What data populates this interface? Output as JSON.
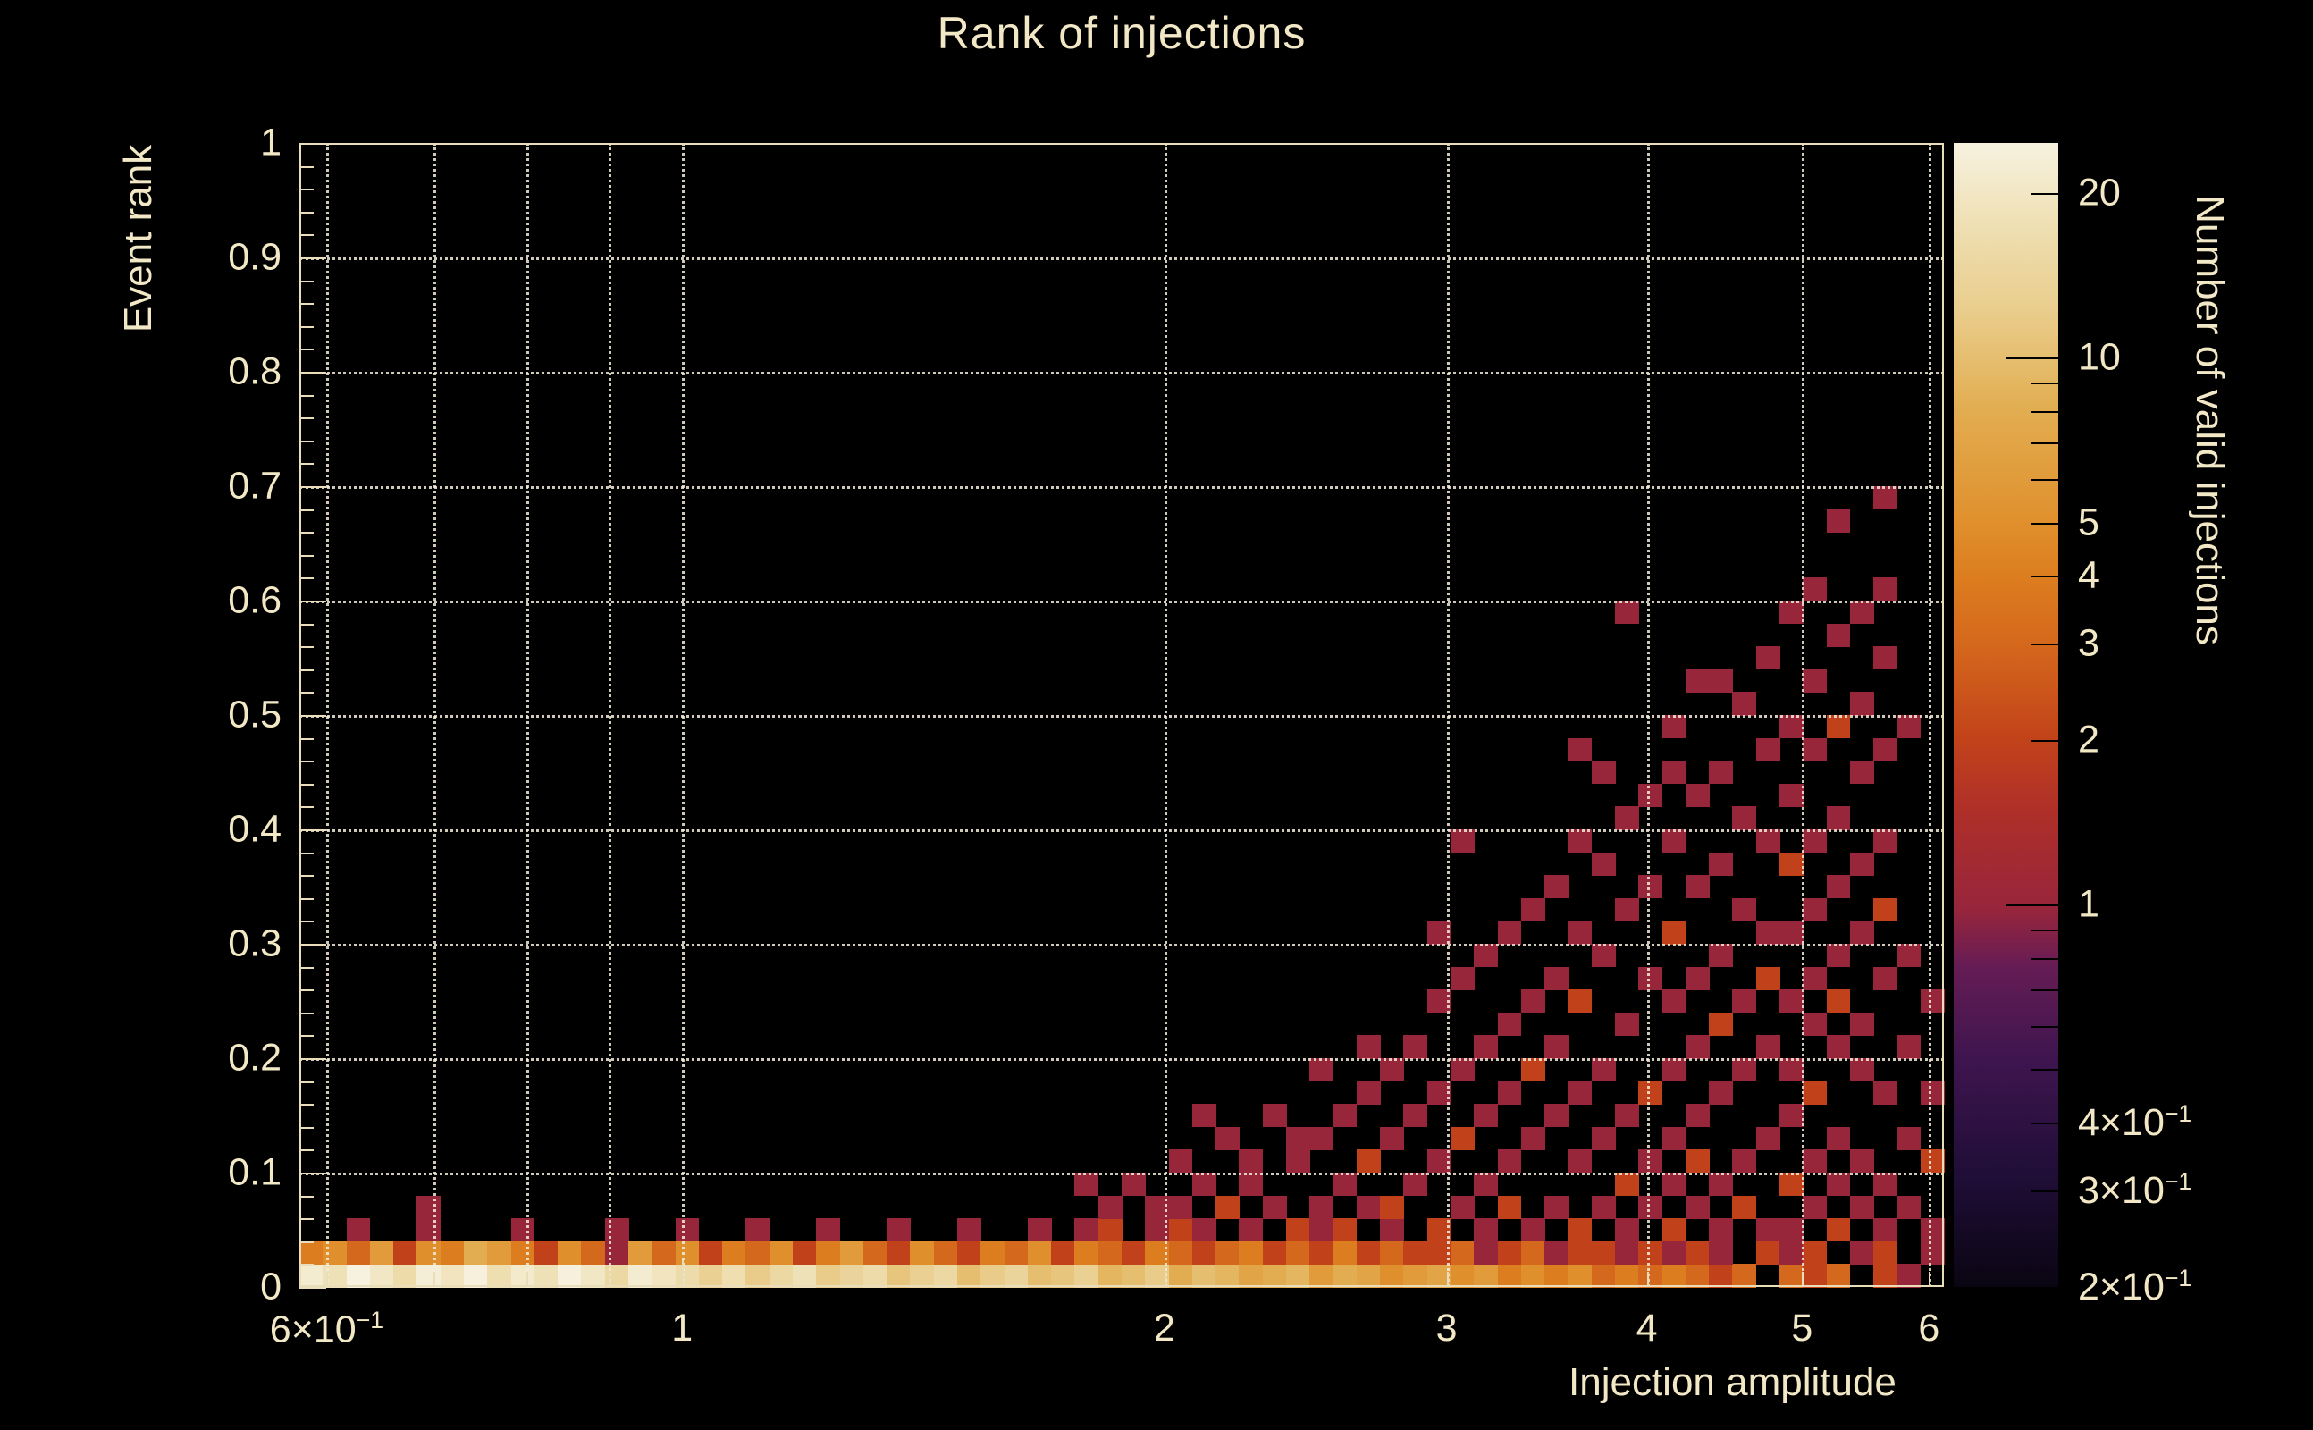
{
  "title": "Rank of injections",
  "colors": {
    "background": "#000000",
    "text": "#f2e8c6",
    "frame": "#e9ddba",
    "grid": "#f3ecda",
    "tick": "#e9ddba",
    "colorbar_tick": "#000000"
  },
  "x_axis": {
    "title": "Injection amplitude",
    "scale": "log",
    "min": 0.577,
    "max": 6.13,
    "gridlines": [
      0.6,
      0.7,
      0.8,
      0.9,
      1,
      2,
      3,
      4,
      5,
      6
    ],
    "ticks": [
      {
        "v": 0.6,
        "label": "6×10^−1",
        "major": false
      },
      {
        "v": 0.7,
        "label": "",
        "major": false
      },
      {
        "v": 0.8,
        "label": "",
        "major": false
      },
      {
        "v": 0.9,
        "label": "",
        "major": false
      },
      {
        "v": 1,
        "label": "1",
        "major": true
      },
      {
        "v": 2,
        "label": "2",
        "major": false
      },
      {
        "v": 3,
        "label": "3",
        "major": false
      },
      {
        "v": 4,
        "label": "4",
        "major": false
      },
      {
        "v": 5,
        "label": "5",
        "major": false
      },
      {
        "v": 6,
        "label": "6",
        "major": false
      }
    ]
  },
  "y_axis": {
    "title": "Event rank",
    "scale": "linear",
    "min": 0,
    "max": 1,
    "minor_step": 0.02,
    "ticks": [
      {
        "v": 0,
        "label": "0"
      },
      {
        "v": 0.1,
        "label": "0.1"
      },
      {
        "v": 0.2,
        "label": "0.2"
      },
      {
        "v": 0.3,
        "label": "0.3"
      },
      {
        "v": 0.4,
        "label": "0.4"
      },
      {
        "v": 0.5,
        "label": "0.5"
      },
      {
        "v": 0.6,
        "label": "0.6"
      },
      {
        "v": 0.7,
        "label": "0.7"
      },
      {
        "v": 0.8,
        "label": "0.8"
      },
      {
        "v": 0.9,
        "label": "0.9"
      },
      {
        "v": 1,
        "label": "1"
      }
    ]
  },
  "colorbar": {
    "title": "Number of valid injections",
    "scale": "log",
    "min": 0.2,
    "max": 24.7,
    "ticks": [
      {
        "v": 20,
        "label": "20",
        "major": false
      },
      {
        "v": 10,
        "label": "10",
        "major": true
      },
      {
        "v": 9,
        "label": "",
        "major": false
      },
      {
        "v": 8,
        "label": "",
        "major": false
      },
      {
        "v": 7,
        "label": "",
        "major": false
      },
      {
        "v": 6,
        "label": "",
        "major": false
      },
      {
        "v": 5,
        "label": "5",
        "major": false
      },
      {
        "v": 4,
        "label": "4",
        "major": false
      },
      {
        "v": 3,
        "label": "3",
        "major": false
      },
      {
        "v": 2,
        "label": "2",
        "major": false
      },
      {
        "v": 1,
        "label": "1",
        "major": true
      },
      {
        "v": 0.9,
        "label": "",
        "major": false
      },
      {
        "v": 0.8,
        "label": "",
        "major": false
      },
      {
        "v": 0.7,
        "label": "",
        "major": false
      },
      {
        "v": 0.6,
        "label": "",
        "major": false
      },
      {
        "v": 0.5,
        "label": "",
        "major": false
      },
      {
        "v": 0.4,
        "label": "4×10^−1",
        "major": false
      },
      {
        "v": 0.3,
        "label": "3×10^−1",
        "major": false
      },
      {
        "v": 0.2,
        "label": "2×10^−1",
        "major": false
      }
    ],
    "palette": [
      [
        0.0,
        "#0a0512"
      ],
      [
        0.1,
        "#200e38"
      ],
      [
        0.2,
        "#3f154f"
      ],
      [
        0.28,
        "#651c54"
      ],
      [
        0.33,
        "#97253c"
      ],
      [
        0.42,
        "#b03028"
      ],
      [
        0.48,
        "#c2431a"
      ],
      [
        0.56,
        "#d4671c"
      ],
      [
        0.62,
        "#dc7d1f"
      ],
      [
        0.67,
        "#e0902d"
      ],
      [
        0.77,
        "#e2ae52"
      ],
      [
        0.85,
        "#e9cc8a"
      ],
      [
        0.93,
        "#efe0b4"
      ],
      [
        1.0,
        "#f7f2e0"
      ]
    ]
  },
  "chart_data": {
    "type": "heatmap",
    "title": "Rank of injections",
    "xlabel": "Injection amplitude",
    "ylabel": "Event rank",
    "zlabel": "Number of valid injections",
    "x_scale": "log",
    "z_scale": "log",
    "x_range": [
      0.577,
      6.13
    ],
    "y_range": [
      0,
      1
    ],
    "z_range": [
      0.2,
      24.7
    ],
    "nx": 70,
    "ny": 50,
    "note": "rank-0 band is fully populated at high counts; scattered low-count bins appear above amplitude ~1.8 and extend to higher ranks as amplitude grows, up to rank ~0.68 near amplitude 5.4",
    "bottom_row": [
      22,
      18,
      25,
      20,
      16,
      23,
      19,
      24,
      17,
      21,
      18,
      24,
      20,
      15,
      22,
      19,
      16,
      13,
      17,
      12,
      15,
      18,
      12,
      14,
      16,
      11,
      13,
      15,
      10,
      12,
      14,
      10,
      11,
      13,
      9,
      10,
      12,
      8,
      10,
      9,
      7,
      8,
      9,
      6,
      8,
      7,
      5,
      6,
      7,
      5,
      6,
      4,
      5,
      4,
      5,
      3,
      4,
      3,
      4,
      3,
      2,
      3,
      0,
      3,
      2,
      3,
      0,
      2,
      1,
      0
    ],
    "row1": [
      4,
      5,
      3,
      6,
      2,
      5,
      4,
      8,
      6,
      4,
      2,
      5,
      3,
      1,
      6,
      3,
      5,
      2,
      4,
      3,
      5,
      2,
      4,
      6,
      3,
      2,
      5,
      3,
      2,
      4,
      3,
      5,
      2,
      4,
      3,
      2,
      4,
      3,
      2,
      3,
      4,
      2,
      3,
      2,
      4,
      2,
      3,
      2,
      2,
      3,
      1,
      2,
      3,
      1,
      2,
      2,
      1,
      2,
      1,
      2,
      1,
      0,
      2,
      1,
      2,
      0,
      1,
      2,
      0,
      1
    ],
    "cells": [
      [
        2,
        2,
        1
      ],
      [
        5,
        2,
        1
      ],
      [
        5,
        3,
        1
      ],
      [
        9,
        2,
        1
      ],
      [
        13,
        2,
        1
      ],
      [
        16,
        2,
        1
      ],
      [
        19,
        2,
        1
      ],
      [
        22,
        2,
        1
      ],
      [
        25,
        2,
        1
      ],
      [
        28,
        2,
        1
      ],
      [
        31,
        2,
        1
      ],
      [
        33,
        2,
        1
      ],
      [
        33,
        4,
        1
      ],
      [
        34,
        2,
        2
      ],
      [
        34,
        3,
        1
      ],
      [
        35,
        4,
        1
      ],
      [
        36,
        2,
        1
      ],
      [
        36,
        3,
        1
      ],
      [
        37,
        2,
        2
      ],
      [
        37,
        3,
        1
      ],
      [
        37,
        5,
        1
      ],
      [
        38,
        2,
        1
      ],
      [
        38,
        4,
        1
      ],
      [
        38,
        7,
        1
      ],
      [
        39,
        3,
        2
      ],
      [
        39,
        6,
        1
      ],
      [
        40,
        2,
        1
      ],
      [
        40,
        4,
        1
      ],
      [
        40,
        5,
        1
      ],
      [
        41,
        3,
        1
      ],
      [
        41,
        7,
        1
      ],
      [
        42,
        2,
        2
      ],
      [
        42,
        5,
        1
      ],
      [
        42,
        6,
        1
      ],
      [
        43,
        2,
        1
      ],
      [
        43,
        3,
        1
      ],
      [
        43,
        6,
        1
      ],
      [
        43,
        9,
        1
      ],
      [
        44,
        2,
        2
      ],
      [
        44,
        4,
        1
      ],
      [
        44,
        7,
        1
      ],
      [
        45,
        3,
        1
      ],
      [
        45,
        5,
        2
      ],
      [
        45,
        8,
        1
      ],
      [
        45,
        10,
        1
      ],
      [
        46,
        2,
        1
      ],
      [
        46,
        3,
        2
      ],
      [
        46,
        6,
        1
      ],
      [
        46,
        9,
        1
      ],
      [
        47,
        4,
        1
      ],
      [
        47,
        7,
        1
      ],
      [
        47,
        10,
        1
      ],
      [
        48,
        2,
        2
      ],
      [
        48,
        5,
        1
      ],
      [
        48,
        8,
        1
      ],
      [
        48,
        12,
        1
      ],
      [
        48,
        15,
        1
      ],
      [
        49,
        3,
        1
      ],
      [
        49,
        6,
        2
      ],
      [
        49,
        9,
        1
      ],
      [
        49,
        13,
        1
      ],
      [
        49,
        19,
        1
      ],
      [
        50,
        2,
        1
      ],
      [
        50,
        4,
        1
      ],
      [
        50,
        7,
        1
      ],
      [
        50,
        10,
        1
      ],
      [
        50,
        14,
        1
      ],
      [
        51,
        3,
        2
      ],
      [
        51,
        5,
        1
      ],
      [
        51,
        8,
        1
      ],
      [
        51,
        11,
        1
      ],
      [
        51,
        15,
        1
      ],
      [
        52,
        2,
        1
      ],
      [
        52,
        6,
        1
      ],
      [
        52,
        9,
        2
      ],
      [
        52,
        12,
        1
      ],
      [
        52,
        16,
        1
      ],
      [
        53,
        3,
        1
      ],
      [
        53,
        7,
        1
      ],
      [
        53,
        10,
        1
      ],
      [
        53,
        13,
        1
      ],
      [
        53,
        17,
        1
      ],
      [
        54,
        2,
        2
      ],
      [
        54,
        5,
        1
      ],
      [
        54,
        8,
        1
      ],
      [
        54,
        12,
        2
      ],
      [
        54,
        15,
        1
      ],
      [
        54,
        19,
        1
      ],
      [
        54,
        23,
        1
      ],
      [
        55,
        3,
        1
      ],
      [
        55,
        6,
        1
      ],
      [
        55,
        9,
        1
      ],
      [
        55,
        14,
        1
      ],
      [
        55,
        18,
        1
      ],
      [
        55,
        22,
        1
      ],
      [
        56,
        2,
        1
      ],
      [
        56,
        4,
        2
      ],
      [
        56,
        7,
        1
      ],
      [
        56,
        11,
        1
      ],
      [
        56,
        16,
        1
      ],
      [
        56,
        20,
        1
      ],
      [
        56,
        29,
        1
      ],
      [
        57,
        3,
        1
      ],
      [
        57,
        5,
        1
      ],
      [
        57,
        8,
        2
      ],
      [
        57,
        13,
        1
      ],
      [
        57,
        17,
        1
      ],
      [
        57,
        21,
        1
      ],
      [
        58,
        2,
        2
      ],
      [
        58,
        4,
        1
      ],
      [
        58,
        6,
        1
      ],
      [
        58,
        9,
        1
      ],
      [
        58,
        12,
        1
      ],
      [
        58,
        15,
        2
      ],
      [
        58,
        19,
        1
      ],
      [
        58,
        22,
        1
      ],
      [
        58,
        24,
        1
      ],
      [
        59,
        3,
        1
      ],
      [
        59,
        5,
        2
      ],
      [
        59,
        7,
        1
      ],
      [
        59,
        10,
        1
      ],
      [
        59,
        13,
        1
      ],
      [
        59,
        17,
        1
      ],
      [
        59,
        21,
        1
      ],
      [
        59,
        26,
        1
      ],
      [
        60,
        2,
        1
      ],
      [
        60,
        4,
        1
      ],
      [
        60,
        8,
        1
      ],
      [
        60,
        11,
        2
      ],
      [
        60,
        14,
        1
      ],
      [
        60,
        18,
        1
      ],
      [
        60,
        22,
        1
      ],
      [
        60,
        26,
        1
      ],
      [
        61,
        3,
        2
      ],
      [
        61,
        5,
        1
      ],
      [
        61,
        9,
        1
      ],
      [
        61,
        12,
        1
      ],
      [
        61,
        16,
        1
      ],
      [
        61,
        20,
        1
      ],
      [
        61,
        25,
        1
      ],
      [
        62,
        2,
        1
      ],
      [
        62,
        6,
        1
      ],
      [
        62,
        10,
        1
      ],
      [
        62,
        13,
        2
      ],
      [
        62,
        15,
        1
      ],
      [
        62,
        19,
        1
      ],
      [
        62,
        23,
        1
      ],
      [
        62,
        27,
        1
      ],
      [
        63,
        2,
        1
      ],
      [
        63,
        4,
        2
      ],
      [
        63,
        7,
        1
      ],
      [
        63,
        9,
        1
      ],
      [
        63,
        12,
        1
      ],
      [
        63,
        15,
        1
      ],
      [
        63,
        18,
        2
      ],
      [
        63,
        21,
        1
      ],
      [
        63,
        24,
        1
      ],
      [
        63,
        29,
        1
      ],
      [
        64,
        3,
        1
      ],
      [
        64,
        5,
        1
      ],
      [
        64,
        8,
        2
      ],
      [
        64,
        11,
        1
      ],
      [
        64,
        13,
        1
      ],
      [
        64,
        16,
        1
      ],
      [
        64,
        19,
        1
      ],
      [
        64,
        23,
        1
      ],
      [
        64,
        26,
        1
      ],
      [
        64,
        30,
        1
      ],
      [
        65,
        2,
        2
      ],
      [
        65,
        4,
        1
      ],
      [
        65,
        6,
        1
      ],
      [
        65,
        10,
        1
      ],
      [
        65,
        12,
        2
      ],
      [
        65,
        14,
        1
      ],
      [
        65,
        17,
        1
      ],
      [
        65,
        20,
        1
      ],
      [
        65,
        24,
        2
      ],
      [
        65,
        28,
        1
      ],
      [
        65,
        33,
        1
      ],
      [
        66,
        3,
        1
      ],
      [
        66,
        5,
        1
      ],
      [
        66,
        9,
        1
      ],
      [
        66,
        11,
        1
      ],
      [
        66,
        15,
        1
      ],
      [
        66,
        18,
        1
      ],
      [
        66,
        22,
        1
      ],
      [
        66,
        25,
        1
      ],
      [
        66,
        29,
        1
      ],
      [
        67,
        2,
        1
      ],
      [
        67,
        4,
        1
      ],
      [
        67,
        8,
        1
      ],
      [
        67,
        13,
        1
      ],
      [
        67,
        16,
        2
      ],
      [
        67,
        19,
        1
      ],
      [
        67,
        23,
        1
      ],
      [
        67,
        27,
        1
      ],
      [
        67,
        30,
        1
      ],
      [
        67,
        34,
        1
      ],
      [
        68,
        3,
        1
      ],
      [
        68,
        6,
        1
      ],
      [
        68,
        10,
        1
      ],
      [
        68,
        14,
        1
      ],
      [
        68,
        24,
        1
      ],
      [
        69,
        2,
        1
      ],
      [
        69,
        5,
        2
      ],
      [
        69,
        8,
        1
      ],
      [
        69,
        12,
        1
      ]
    ]
  }
}
